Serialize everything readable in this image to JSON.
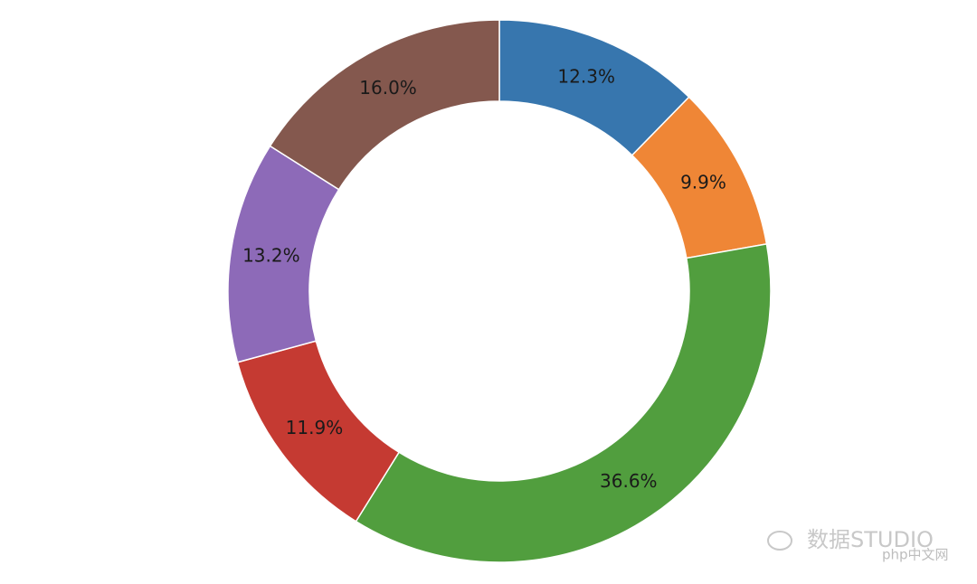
{
  "chart_data": {
    "type": "donut",
    "categories": [
      null,
      null,
      null,
      null,
      null,
      null
    ],
    "values": [
      12.3,
      9.9,
      36.6,
      11.9,
      13.2,
      16.0
    ],
    "value_labels": [
      "12.3%",
      "9.9%",
      "36.6%",
      "11.9%",
      "13.2%",
      "16.0%"
    ],
    "colors": [
      "#3776ae",
      "#ef8636",
      "#519e3e",
      "#c53a32",
      "#8d6ab8",
      "#84584e"
    ],
    "watermark": "数据STUDIO",
    "watermark_site": "php中文网"
  }
}
